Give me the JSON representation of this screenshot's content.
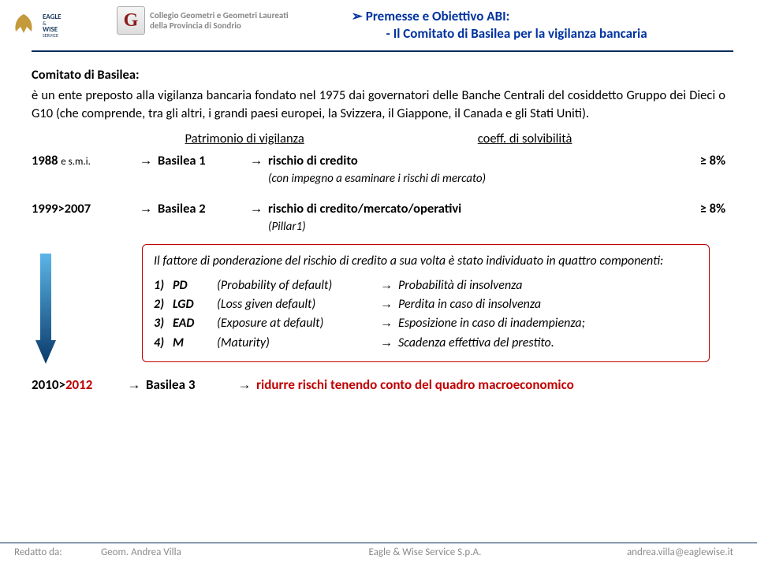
{
  "header": {
    "eagle_top": "EAGLE",
    "eagle_amp": "&",
    "eagle_bottom": "WISE",
    "eagle_service": "SERVICE",
    "sondrio_line1": "Collegio Geometri e Geometri Laureati",
    "sondrio_line2": "della Provincia di Sondrio",
    "title_line1": "Premesse e Obiettivo ABI:",
    "title_line2": "- Il Comitato di Basilea per la vigilanza bancaria",
    "title_bullet": "➢",
    "title_color": "#0033a0"
  },
  "body": {
    "heading": "Comitato di Basilea:",
    "para": "è un ente preposto alla vigilanza bancaria fondato nel 1975 dai governatori delle Banche Centrali del cosiddetto Gruppo dei Dieci o G10 (che comprende, tra gli altri, i grandi paesi europei, la Svizzera, il Giappone, il Canada e gli Stati Uniti).",
    "patrimonio": "Patrimonio di vigilanza",
    "coeff": "coeff. di solvibilità",
    "row1988": {
      "year": "1988",
      "esmi": "e s.m.i.",
      "arrow": "→",
      "basel": "Basilea 1",
      "arrow2": "→",
      "risk": "rischio di credito",
      "sub": "(con impegno a esaminare i rischi di mercato)",
      "pct": "≥   8%"
    },
    "row1999": {
      "year": "1999>2007",
      "arrow": "→",
      "basel": "Basilea 2",
      "arrow2": "→",
      "risk": "rischio di credito/mercato/operativi",
      "sub": "(Pillar1)",
      "pct": "≥   8%"
    },
    "factor_box": {
      "intro": "Il fattore di ponderazione del rischio di credito a sua volta è stato individuato in quattro componenti:",
      "items": [
        {
          "num": "1)",
          "abbr": "PD",
          "long": "(Probability of default)",
          "arrow": "→",
          "desc": "Probabilità di insolvenza"
        },
        {
          "num": "2)",
          "abbr": "LGD",
          "long": "(Loss given default)",
          "arrow": "→",
          "desc": "Perdita in caso di insolvenza"
        },
        {
          "num": "3)",
          "abbr": "EAD",
          "long": "(Exposure at default)",
          "arrow": "→",
          "desc": "Esposizione in caso di inadempienza;"
        },
        {
          "num": "4)",
          "abbr": "M",
          "long": "(Maturity)",
          "arrow": "→",
          "desc": "Scadenza effettiva del prestito."
        }
      ]
    },
    "row2010": {
      "year_a": "2010>",
      "year_b": "2012",
      "arrow": "→",
      "basel": "Basilea 3",
      "arrow2": "→",
      "reduce": "ridurre rischi tenendo conto del quadro macroeconomico"
    }
  },
  "gradient_arrow": {
    "color_top": "#5bb5e8",
    "color_bottom": "#002b5c"
  },
  "footer": {
    "f1": "Redatto da:",
    "f2": "Geom. Andrea Villa",
    "f3": "Eagle & Wise Service S.p.A.",
    "f4": "andrea.villa@eaglewise.it"
  }
}
